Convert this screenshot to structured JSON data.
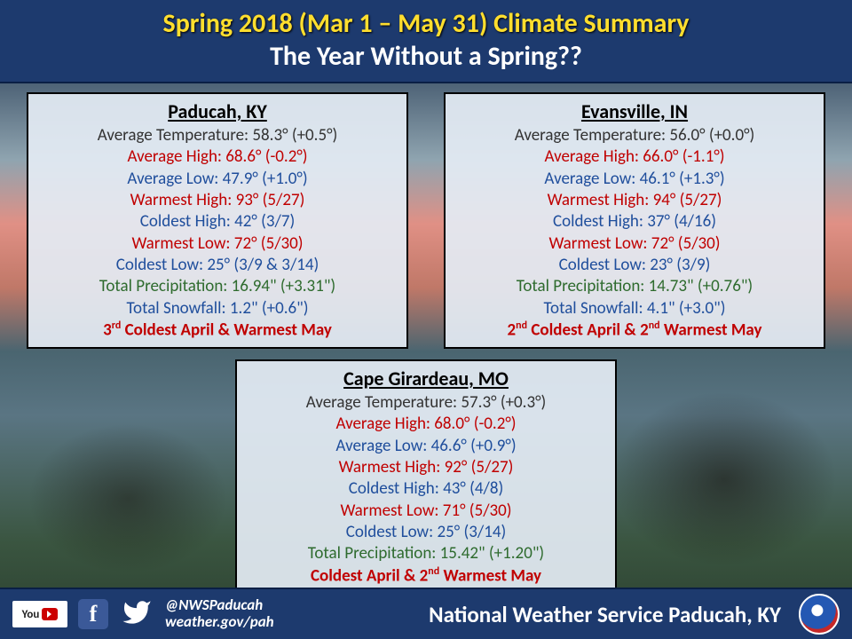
{
  "header": {
    "title1": "Spring 2018 (Mar 1 – May 31) Climate Summary",
    "title2": "The Year Without a Spring??",
    "bg_color": "#1d3a6e",
    "title1_color": "#ffde2e",
    "title2_color": "#ffffff"
  },
  "cards": {
    "paducah": {
      "title": "Paducah, KY",
      "avg_temp": "Average Temperature: 58.3° (+0.5°)",
      "avg_high": "Average High: 68.6° (-0.2°)",
      "avg_low": "Average Low: 47.9° (+1.0°)",
      "warm_high": "Warmest High: 93° (5/27)",
      "cold_high": "Coldest High: 42° (3/7)",
      "warm_low": "Warmest Low: 72° (5/30)",
      "cold_low": "Coldest Low: 25° (3/9 & 3/14)",
      "precip": "Total Precipitation: 16.94\" (+3.31\")",
      "snow": "Total Snowfall: 1.2\" (+0.6\")",
      "rank_html": "3<sup>rd</sup> Coldest April & Warmest May"
    },
    "evansville": {
      "title": "Evansville, IN",
      "avg_temp": "Average Temperature: 56.0° (+0.0°)",
      "avg_high": "Average High: 66.0° (-1.1°)",
      "avg_low": "Average Low: 46.1° (+1.3°)",
      "warm_high": "Warmest High: 94° (5/27)",
      "cold_high": "Coldest High: 37° (4/16)",
      "warm_low": "Warmest Low: 72° (5/30)",
      "cold_low": "Coldest Low: 23° (3/9)",
      "precip": "Total Precipitation: 14.73\" (+0.76\")",
      "snow": "Total Snowfall: 4.1\" (+3.0\")",
      "rank_html": "2<sup>nd</sup> Coldest April & 2<sup>nd</sup> Warmest May"
    },
    "cape": {
      "title": "Cape Girardeau, MO",
      "avg_temp": "Average Temperature: 57.3° (+0.3°)",
      "avg_high": "Average High: 68.0° (-0.2°)",
      "avg_low": "Average Low: 46.6° (+0.9°)",
      "warm_high": "Warmest High: 92° (5/27)",
      "cold_high": "Coldest High: 43° (4/8)",
      "warm_low": "Warmest Low: 71° (5/30)",
      "cold_low": "Coldest Low: 25° (3/14)",
      "precip": "Total Precipitation: 15.42\" (+1.20\")",
      "rank_html": "Coldest April & 2<sup>nd</sup> Warmest May"
    }
  },
  "style": {
    "card_bg": "rgba(228,236,244,0.92)",
    "card_border": "#000000",
    "color_black": "#333333",
    "color_red": "#c00000",
    "color_blue": "#1f4e9c",
    "color_green": "#2e6b2e",
    "font_title": 22,
    "font_stat": 19
  },
  "footer": {
    "youtube_label": "YouTube",
    "fb_label": "f",
    "handle_line1": "@NWSPaducah",
    "handle_line2": "weather.gov/pah",
    "agency": "National Weather Service Paducah, KY",
    "bg_color": "#1d3a6e"
  }
}
